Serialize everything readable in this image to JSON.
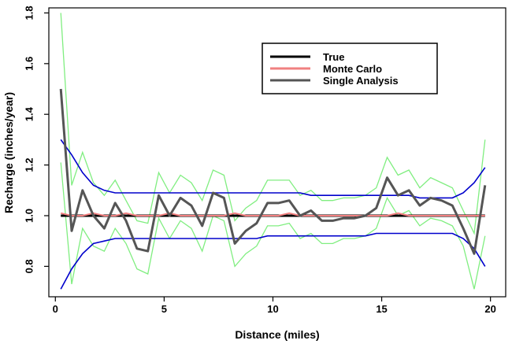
{
  "chart_data": {
    "type": "line",
    "xlabel": "Distance (miles)",
    "ylabel": "Recharge (inches/year)",
    "xlim": [
      -0.3,
      20.7
    ],
    "ylim": [
      0.68,
      1.82
    ],
    "xticks": [
      0,
      5,
      10,
      15,
      20
    ],
    "xtick_labels": [
      "0",
      "5",
      "10",
      "15",
      "20"
    ],
    "yticks": [
      0.8,
      1.0,
      1.2,
      1.4,
      1.6,
      1.8
    ],
    "ytick_labels": [
      "0.8",
      "1.0",
      "1.2",
      "1.4",
      "1.6",
      "1.8"
    ],
    "legend_position": "top-right",
    "legend": [
      "True",
      "Monte Carlo",
      "Single Analysis"
    ],
    "colors": {
      "true": "#000000",
      "monte_carlo": "#f08080",
      "single_analysis": "#555555",
      "bounds_blue": "#0000cc",
      "bounds_green": "#80ee80"
    },
    "x": [
      0.25,
      0.75,
      1.25,
      1.75,
      2.25,
      2.75,
      3.25,
      3.75,
      4.25,
      4.75,
      5.25,
      5.75,
      6.25,
      6.75,
      7.25,
      7.75,
      8.25,
      8.75,
      9.25,
      9.75,
      10.25,
      10.75,
      11.25,
      11.75,
      12.25,
      12.75,
      13.25,
      13.75,
      14.25,
      14.75,
      15.25,
      15.75,
      16.25,
      16.75,
      17.25,
      17.75,
      18.25,
      18.75,
      19.25,
      19.75
    ],
    "series": [
      {
        "name": "True",
        "key": "true",
        "values": [
          1.0,
          1.0,
          1.0,
          1.0,
          1.0,
          1.0,
          1.0,
          1.0,
          1.0,
          1.0,
          1.0,
          1.0,
          1.0,
          1.0,
          1.0,
          1.0,
          1.0,
          1.0,
          1.0,
          1.0,
          1.0,
          1.0,
          1.0,
          1.0,
          1.0,
          1.0,
          1.0,
          1.0,
          1.0,
          1.0,
          1.0,
          1.0,
          1.0,
          1.0,
          1.0,
          1.0,
          1.0,
          1.0,
          1.0,
          1.0
        ]
      },
      {
        "name": "Monte Carlo",
        "key": "monte_carlo",
        "values": [
          1.01,
          1.0,
          1.0,
          1.01,
          1.0,
          1.0,
          1.01,
          1.0,
          1.0,
          1.0,
          1.01,
          1.0,
          1.0,
          1.0,
          1.0,
          1.0,
          1.01,
          1.0,
          1.0,
          1.0,
          1.0,
          1.01,
          1.0,
          1.0,
          1.0,
          1.0,
          1.0,
          1.0,
          1.0,
          1.0,
          1.0,
          1.01,
          1.0,
          1.0,
          1.0,
          1.0,
          1.0,
          1.0,
          1.0,
          1.0
        ]
      },
      {
        "name": "Single Analysis",
        "key": "single_analysis",
        "values": [
          1.5,
          0.94,
          1.1,
          1.0,
          0.95,
          1.05,
          0.98,
          0.87,
          0.86,
          1.08,
          1.0,
          1.07,
          1.04,
          0.96,
          1.09,
          1.07,
          0.89,
          0.94,
          0.97,
          1.05,
          1.05,
          1.06,
          1.0,
          1.02,
          0.98,
          0.98,
          0.99,
          0.99,
          1.0,
          1.03,
          1.15,
          1.08,
          1.1,
          1.04,
          1.07,
          1.06,
          1.04,
          0.95,
          0.85,
          1.12
        ]
      }
    ],
    "bounds": [
      {
        "key": "bounds_blue",
        "upper": [
          1.3,
          1.24,
          1.17,
          1.12,
          1.1,
          1.09,
          1.09,
          1.09,
          1.09,
          1.09,
          1.09,
          1.09,
          1.09,
          1.09,
          1.09,
          1.09,
          1.09,
          1.09,
          1.09,
          1.09,
          1.09,
          1.09,
          1.09,
          1.08,
          1.08,
          1.08,
          1.08,
          1.08,
          1.08,
          1.08,
          1.08,
          1.08,
          1.08,
          1.07,
          1.07,
          1.07,
          1.07,
          1.09,
          1.13,
          1.19
        ],
        "lower": [
          0.71,
          0.79,
          0.85,
          0.89,
          0.9,
          0.91,
          0.91,
          0.91,
          0.91,
          0.91,
          0.91,
          0.91,
          0.91,
          0.91,
          0.91,
          0.91,
          0.91,
          0.91,
          0.91,
          0.92,
          0.92,
          0.92,
          0.92,
          0.92,
          0.92,
          0.92,
          0.92,
          0.92,
          0.92,
          0.93,
          0.93,
          0.93,
          0.93,
          0.93,
          0.93,
          0.93,
          0.93,
          0.91,
          0.87,
          0.8
        ]
      },
      {
        "key": "bounds_green",
        "upper": [
          1.8,
          1.12,
          1.25,
          1.13,
          1.08,
          1.14,
          1.06,
          0.98,
          0.97,
          1.17,
          1.09,
          1.16,
          1.13,
          1.06,
          1.18,
          1.16,
          0.98,
          1.03,
          1.06,
          1.14,
          1.14,
          1.14,
          1.08,
          1.1,
          1.06,
          1.06,
          1.07,
          1.07,
          1.08,
          1.11,
          1.23,
          1.16,
          1.18,
          1.11,
          1.15,
          1.13,
          1.11,
          1.02,
          0.93,
          1.3
        ],
        "lower": [
          1.21,
          0.73,
          0.95,
          0.88,
          0.86,
          0.95,
          0.89,
          0.79,
          0.77,
          0.99,
          0.91,
          0.98,
          0.95,
          0.86,
          1.0,
          0.98,
          0.8,
          0.85,
          0.88,
          0.96,
          0.96,
          0.97,
          0.91,
          0.93,
          0.89,
          0.89,
          0.91,
          0.91,
          0.92,
          0.95,
          1.07,
          1.0,
          1.02,
          0.96,
          0.99,
          0.98,
          0.96,
          0.88,
          0.71,
          0.92
        ]
      }
    ]
  }
}
